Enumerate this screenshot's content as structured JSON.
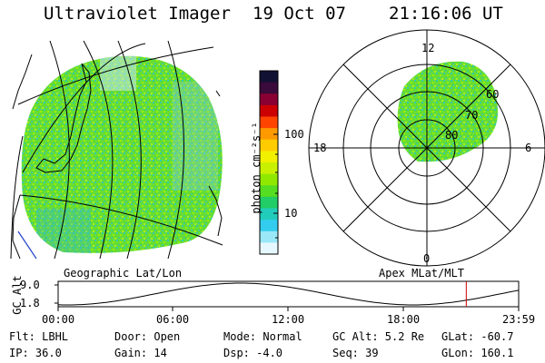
{
  "header": {
    "title": "Ultraviolet Imager",
    "date": "19 Oct 07",
    "time": "21:16:06 UT"
  },
  "colorbar": {
    "unit_label": "photon cm⁻²s⁻¹",
    "ticks": [
      "100",
      "10"
    ],
    "colors": [
      "#111133",
      "#3a0a3a",
      "#8a0033",
      "#cc0000",
      "#ff4400",
      "#ff9900",
      "#ffcc00",
      "#f0f000",
      "#c8f000",
      "#90e800",
      "#55dd22",
      "#22cc66",
      "#22ccbb",
      "#33ccee",
      "#99e8f8",
      "#e6f8ff"
    ]
  },
  "left_map": {
    "label": "Geographic Lat/Lon"
  },
  "polar_plot": {
    "label": "Apex MLat/MLT",
    "mlt_labels": {
      "top": "12",
      "bottom": "0",
      "left": "18",
      "right": "6"
    },
    "lat_labels": [
      "60",
      "70",
      "80"
    ]
  },
  "altitude_panel": {
    "ylabel": "GC Alt",
    "yticks": [
      "9.0",
      "1.8"
    ],
    "xticks": [
      "00:00",
      "06:00",
      "12:00",
      "18:00",
      "23:59"
    ],
    "marker_time_hours": 21.27,
    "marker_color": "#cc0000"
  },
  "info": {
    "flt": "Flt: LBHL",
    "ip": "IP: 36.0",
    "door": "Door: Open",
    "gain": "Gain: 14",
    "mode": "Mode: Normal",
    "dsp": "Dsp:   -4.0",
    "gc_alt": "GC Alt: 5.2 Re",
    "seq": "Seq: 39",
    "glat": "GLat: -60.7",
    "glon": "GLon: 160.1"
  }
}
